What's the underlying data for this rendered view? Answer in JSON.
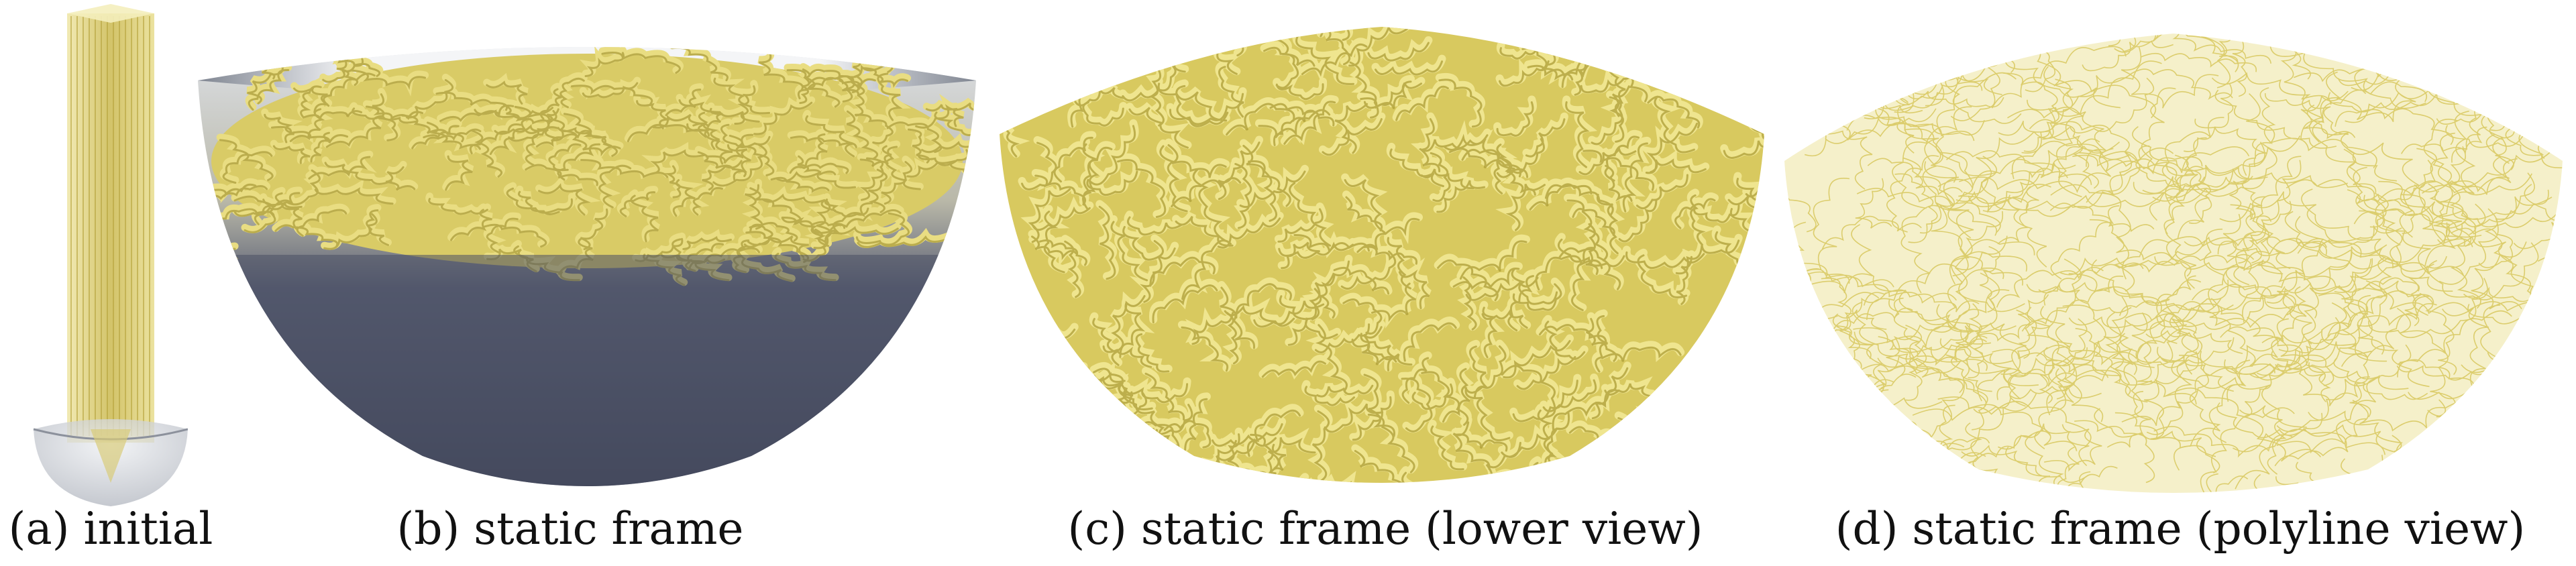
{
  "figure": {
    "captions": {
      "a": "(a) initial",
      "b": "(b) static frame",
      "c": "(c) static frame (lower view)",
      "d": "(d) static frame (polyline view)"
    }
  },
  "colors": {
    "noodle": "#e2d46e",
    "noodle_dark": "#b9a73d",
    "noodle_light": "#f2ea9e",
    "bowl_silver": "#c9ccd3",
    "bowl_dark": "#4a4f63",
    "background": "#ffffff"
  }
}
